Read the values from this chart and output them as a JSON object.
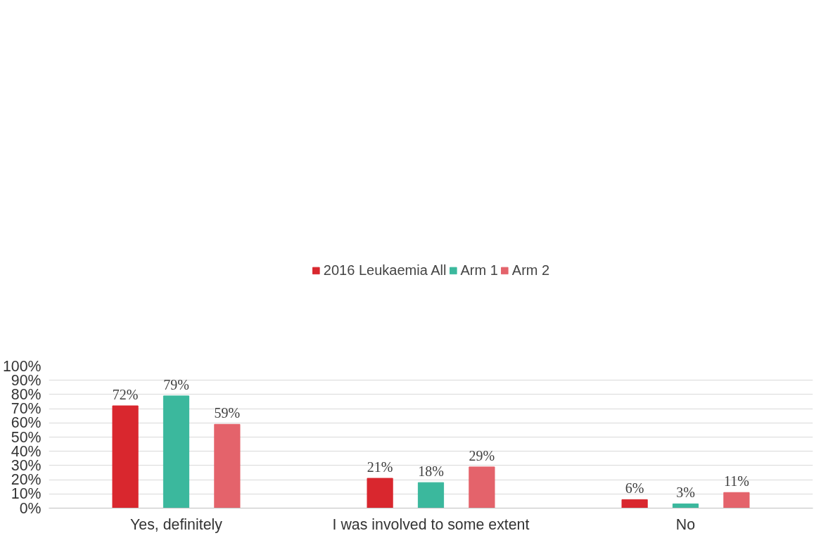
{
  "chart_data": {
    "type": "bar",
    "categories": [
      "Yes, definitely",
      "I was involved to some extent",
      "No"
    ],
    "series": [
      {
        "name": "2016 Leukaemia All",
        "color": "#d9272e",
        "values": [
          72,
          21,
          6
        ],
        "value_labels": [
          "72%",
          "21%",
          "6%"
        ]
      },
      {
        "name": "Arm 1",
        "color": "#3bb89d",
        "values": [
          79,
          18,
          3
        ],
        "value_labels": [
          "79%",
          "18%",
          "3%"
        ]
      },
      {
        "name": "Arm 2",
        "color": "#e4636b",
        "values": [
          59,
          29,
          11
        ],
        "value_labels": [
          "59%",
          "29%",
          "11%"
        ]
      }
    ],
    "ylim": [
      0,
      100
    ],
    "yticks": [
      {
        "value": 0,
        "label": "0%"
      },
      {
        "value": 10,
        "label": "10%"
      },
      {
        "value": 20,
        "label": "20%"
      },
      {
        "value": 30,
        "label": "30%"
      },
      {
        "value": 40,
        "label": "40%"
      },
      {
        "value": 50,
        "label": "50%"
      },
      {
        "value": 60,
        "label": "60%"
      },
      {
        "value": 70,
        "label": "70%"
      },
      {
        "value": 80,
        "label": "80%"
      },
      {
        "value": 90,
        "label": "90%"
      },
      {
        "value": 100,
        "label": "100%"
      }
    ],
    "grid": "y",
    "legend": "top"
  }
}
